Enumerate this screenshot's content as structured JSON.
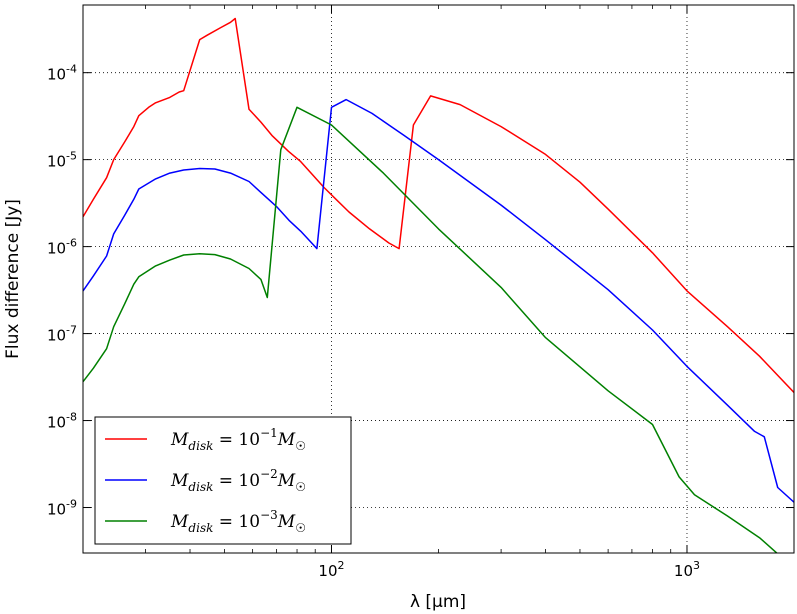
{
  "chart_data": {
    "type": "line",
    "title": "",
    "xlabel": "λ [μm]",
    "ylabel": "Flux difference [Jy]",
    "xscale": "log",
    "yscale": "log",
    "xlim": [
      20,
      2000
    ],
    "ylim": [
      3e-10,
      0.0006
    ],
    "grid": true,
    "legend_placement": "lower-left",
    "x_ticks": [
      {
        "value": 100,
        "base": "10",
        "exp": "2"
      },
      {
        "value": 1000,
        "base": "10",
        "exp": "3"
      }
    ],
    "y_ticks": [
      {
        "value": 0.0001,
        "base": "10",
        "exp": "-4"
      },
      {
        "value": 1e-05,
        "base": "10",
        "exp": "-5"
      },
      {
        "value": 1e-06,
        "base": "10",
        "exp": "-6"
      },
      {
        "value": 1e-07,
        "base": "10",
        "exp": "-7"
      },
      {
        "value": 1e-08,
        "base": "10",
        "exp": "-8"
      },
      {
        "value": 1e-09,
        "base": "10",
        "exp": "-9"
      }
    ],
    "series": [
      {
        "name": "M_disk = 10^-1 M_sun",
        "legend": {
          "lhs": "M",
          "sub": "disk",
          "eq": " = 10",
          "exp": "−1",
          "rhs": "M",
          "rhs_sub": "☉"
        },
        "color": "#ff0000",
        "x": [
          20,
          21.4,
          23.3,
          24.4,
          26.2,
          27.8,
          28.7,
          30.6,
          32.0,
          35.1,
          37.3,
          38.4,
          42.6,
          44.7,
          48.8,
          52.0,
          53.6,
          58.6,
          63.3,
          68.0,
          75.6,
          81.9,
          88.2,
          95.2,
          103,
          112,
          128,
          145,
          155,
          170,
          190,
          230,
          300,
          400,
          500,
          600,
          800,
          1000,
          1300,
          1600,
          2000
        ],
        "y": [
          2.2e-06,
          3.5e-06,
          6.2e-06,
          1e-05,
          1.6e-05,
          2.4e-05,
          3.2e-05,
          4e-05,
          4.5e-05,
          5.2e-05,
          6e-05,
          6.2e-05,
          0.00024,
          0.00027,
          0.00033,
          0.00038,
          0.00042,
          3.8e-05,
          2.7e-05,
          1.9e-05,
          1.25e-05,
          9.5e-06,
          6.8e-06,
          4.8e-06,
          3.5e-06,
          2.5e-06,
          1.6e-06,
          1.1e-06,
          9.5e-07,
          2.5e-05,
          5.4e-05,
          4.3e-05,
          2.4e-05,
          1.15e-05,
          5.5e-06,
          2.7e-06,
          8.5e-07,
          3.1e-07,
          1.2e-07,
          5.5e-08,
          2.1e-08
        ]
      },
      {
        "name": "M_disk = 10^-2 M_sun",
        "legend": {
          "lhs": "M",
          "sub": "disk",
          "eq": " = 10",
          "exp": "−2",
          "rhs": "M",
          "rhs_sub": "☉"
        },
        "color": "#0000ff",
        "x": [
          20,
          21.4,
          23.3,
          24.4,
          26.2,
          27.8,
          28.7,
          32.0,
          35.1,
          38.4,
          42.6,
          47.0,
          52.0,
          58.6,
          63.3,
          70,
          76,
          82,
          88,
          91,
          100,
          110,
          130,
          160,
          200,
          300,
          400,
          600,
          800,
          1000,
          1300,
          1550,
          1650,
          1800,
          2000
        ],
        "y": [
          3.1e-07,
          4.6e-07,
          7.8e-07,
          1.4e-06,
          2.3e-06,
          3.5e-06,
          4.6e-06,
          6e-06,
          7e-06,
          7.6e-06,
          7.9e-06,
          7.8e-06,
          7e-06,
          5.6e-06,
          4.2e-06,
          2.9e-06,
          2e-06,
          1.5e-06,
          1.1e-06,
          9.5e-07,
          4e-05,
          4.9e-05,
          3.4e-05,
          1.9e-05,
          1e-05,
          3e-06,
          1.2e-06,
          3.2e-07,
          1.1e-07,
          4.2e-08,
          1.5e-08,
          7.5e-09,
          6.5e-09,
          1.7e-09,
          1.15e-09
        ]
      },
      {
        "name": "M_disk = 10^-3 M_sun",
        "legend": {
          "lhs": "M",
          "sub": "disk",
          "eq": " = 10",
          "exp": "−3",
          "rhs": "M",
          "rhs_sub": "☉"
        },
        "color": "#008000",
        "x": [
          20,
          21.4,
          23.3,
          24.4,
          26.2,
          27.8,
          28.7,
          32.0,
          35.1,
          38.4,
          42.6,
          47.0,
          52.0,
          58.6,
          63.3,
          66,
          72,
          80,
          100,
          140,
          200,
          300,
          400,
          600,
          800,
          950,
          1050,
          1300,
          1600,
          2000
        ],
        "y": [
          2.8e-08,
          4e-08,
          6.7e-08,
          1.2e-07,
          2.2e-07,
          3.7e-07,
          4.5e-07,
          6e-07,
          7e-07,
          8e-07,
          8.3e-07,
          8.1e-07,
          7.2e-07,
          5.6e-07,
          4.2e-07,
          2.6e-07,
          1.3e-05,
          4e-05,
          2.5e-05,
          7e-06,
          1.6e-06,
          3.4e-07,
          9e-08,
          2.2e-08,
          9e-09,
          2.25e-09,
          1.4e-09,
          8e-10,
          4.5e-10,
          2e-10
        ]
      }
    ]
  }
}
